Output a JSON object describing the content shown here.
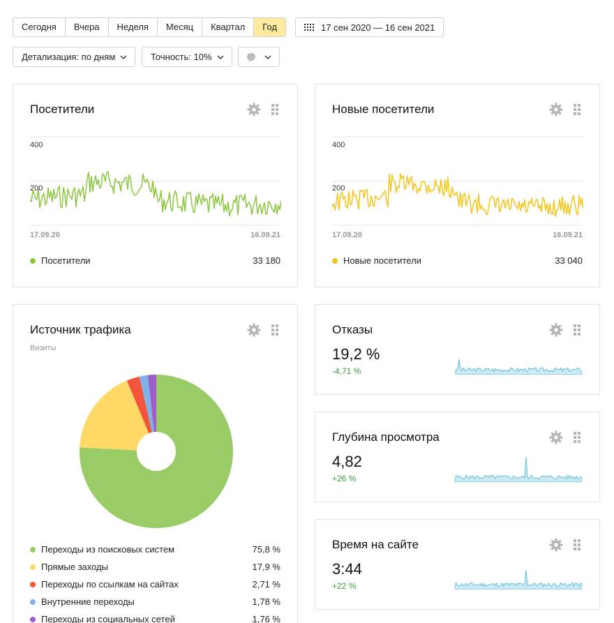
{
  "toolbar": {
    "periods": [
      "Сегодня",
      "Вчера",
      "Неделя",
      "Месяц",
      "Квартал",
      "Год"
    ],
    "active_period": "Год",
    "date_range": "17 сен 2020 — 16 сен 2021",
    "detail_label": "Детализация: по дням",
    "accuracy_label": "Точность: 10%"
  },
  "visitors": {
    "title": "Посетители",
    "y_ticks": [
      "400",
      "200"
    ],
    "x_start": "17.09.20",
    "x_end": "16.09.21",
    "legend_label": "Посетители",
    "legend_value": "33 180",
    "color": "#8cc63f"
  },
  "new_visitors": {
    "title": "Новые посетители",
    "y_ticks": [
      "400",
      "200"
    ],
    "x_start": "17.09.20",
    "x_end": "16.09.21",
    "legend_label": "Новые посетители",
    "legend_value": "33 040",
    "color": "#f5c518"
  },
  "traffic": {
    "title": "Источник трафика",
    "subtitle": "Визиты",
    "items": [
      {
        "label": "Переходы из поисковых систем",
        "value": "75,8 %",
        "pct": 75.8,
        "color": "#99cc66"
      },
      {
        "label": "Прямые заходы",
        "value": "17,9 %",
        "pct": 17.9,
        "color": "#ffd966"
      },
      {
        "label": "Переходы по ссылкам на сайтах",
        "value": "2,71 %",
        "pct": 2.71,
        "color": "#f4553a"
      },
      {
        "label": "Внутренние переходы",
        "value": "1,78 %",
        "pct": 1.78,
        "color": "#7fb3e8"
      },
      {
        "label": "Переходы из социальных сетей",
        "value": "1,76 %",
        "pct": 1.76,
        "color": "#a05cc8"
      }
    ]
  },
  "bounce": {
    "title": "Отказы",
    "value": "19,2 %",
    "delta": "-4,71 %"
  },
  "depth": {
    "title": "Глубина просмотра",
    "value": "4,82",
    "delta": "+26 %"
  },
  "time": {
    "title": "Время на сайте",
    "value": "3:44",
    "delta": "+22 %"
  },
  "colors": {
    "active_period": "#ffeba0",
    "delta_positive": "#3a9e3a",
    "spark": "#5bc0de"
  }
}
